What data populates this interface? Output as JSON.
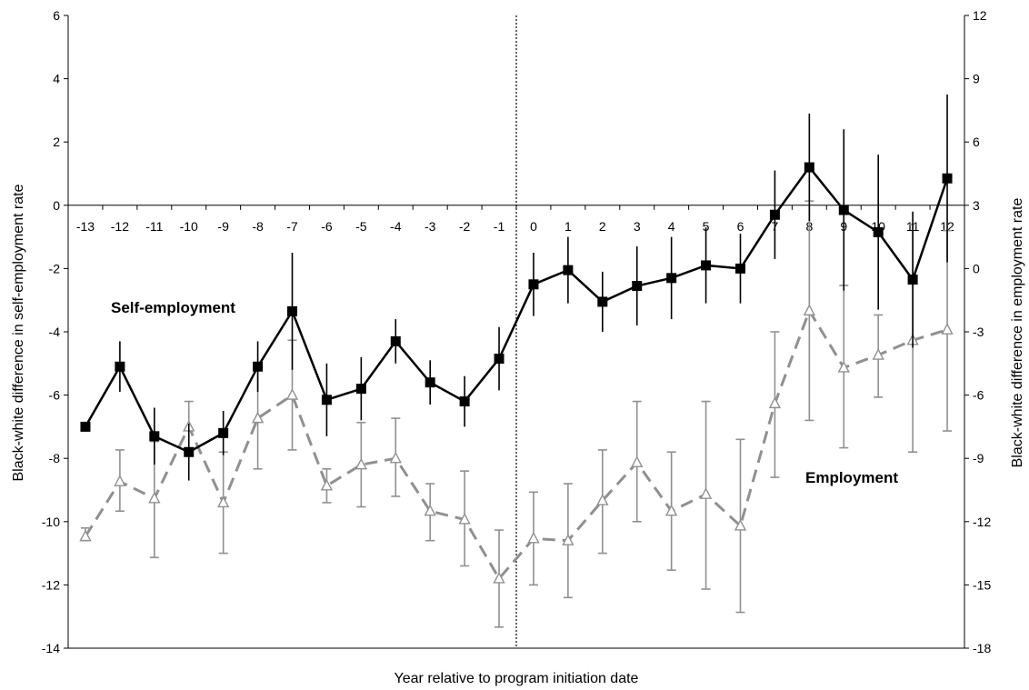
{
  "chart_data": {
    "type": "line",
    "xlabel": "Year relative to program initiation date",
    "ylabel_left": "Black-white difference in self-employment rate",
    "ylabel_right": "Black-white difference in employment rate",
    "x": [
      -13,
      -12,
      -11,
      -10,
      -9,
      -8,
      -7,
      -6,
      -5,
      -4,
      -3,
      -2,
      -1,
      0,
      1,
      2,
      3,
      4,
      5,
      6,
      7,
      8,
      9,
      10,
      11,
      12
    ],
    "ylim_left": [
      -14,
      6
    ],
    "yticks_left": [
      6,
      4,
      2,
      0,
      -2,
      -4,
      -6,
      -8,
      -10,
      -12,
      -14
    ],
    "ylim_right": [
      -18,
      12
    ],
    "yticks_right": [
      12,
      9,
      6,
      3,
      0,
      -3,
      -6,
      -9,
      -12,
      -15,
      -18
    ],
    "vertical_line_x": -0.5,
    "series": [
      {
        "name": "Self-employment",
        "axis": "left",
        "color": "#000000",
        "style": "solid",
        "marker": "square",
        "values": [
          -7.0,
          -5.1,
          -7.3,
          -7.8,
          -7.2,
          -5.1,
          -3.35,
          -6.15,
          -5.8,
          -4.3,
          -5.6,
          -6.2,
          -4.85,
          -2.5,
          -2.05,
          -3.05,
          -2.55,
          -2.3,
          -1.9,
          -2.0,
          -0.3,
          1.2,
          -0.15,
          -0.85,
          -2.35,
          0.85
        ],
        "err_low": [
          null,
          -5.9,
          -8.2,
          -8.7,
          -7.9,
          -5.9,
          -5.2,
          -7.3,
          -6.8,
          -5.0,
          -6.3,
          -7.0,
          -5.85,
          -3.5,
          -3.1,
          -4.0,
          -3.8,
          -3.6,
          -3.1,
          -3.1,
          -1.7,
          -0.5,
          -2.7,
          -3.3,
          -4.5,
          -1.8
        ],
        "err_high": [
          null,
          -4.3,
          -6.4,
          -6.9,
          -6.5,
          -4.3,
          -1.5,
          -5.0,
          -4.8,
          -3.6,
          -4.9,
          -5.4,
          -3.85,
          -1.5,
          -1.0,
          -2.1,
          -1.3,
          -1.0,
          -0.7,
          -0.9,
          1.1,
          2.9,
          2.4,
          1.6,
          -0.2,
          3.5
        ]
      },
      {
        "name": "Employment",
        "axis": "right",
        "color": "#909090",
        "style": "dashed",
        "marker": "triangle",
        "values": [
          -12.7,
          -10.1,
          -10.9,
          -7.5,
          -11.1,
          -7.1,
          -6.0,
          -10.3,
          -9.3,
          -9.0,
          -11.5,
          -11.9,
          -14.7,
          -12.8,
          -12.9,
          -11.0,
          -9.2,
          -11.5,
          -10.7,
          -12.2,
          -6.4,
          -2.0,
          -4.7,
          -4.1,
          -3.4,
          -2.9
        ],
        "err_low": [
          -12.9,
          -11.5,
          -13.7,
          -8.8,
          -13.5,
          -9.5,
          -8.6,
          -11.1,
          -11.3,
          -10.8,
          -12.9,
          -14.1,
          -17.0,
          -15.0,
          -15.6,
          -13.5,
          -12.0,
          -14.3,
          -15.2,
          -16.3,
          -9.9,
          -7.2,
          -8.5,
          -6.1,
          -8.7,
          -7.7
        ],
        "err_high": [
          -12.3,
          -8.6,
          -8.2,
          -6.3,
          -8.7,
          -4.6,
          -3.4,
          -9.5,
          -7.3,
          -7.1,
          -10.2,
          -9.6,
          -12.4,
          -10.6,
          -10.2,
          -8.6,
          -6.3,
          -8.7,
          -6.3,
          -8.1,
          -3.0,
          3.2,
          -0.8,
          -2.2,
          2.1,
          1.8
        ]
      }
    ],
    "annotations": [
      {
        "text": "Self-employment"
      },
      {
        "text": "Employment"
      }
    ]
  }
}
